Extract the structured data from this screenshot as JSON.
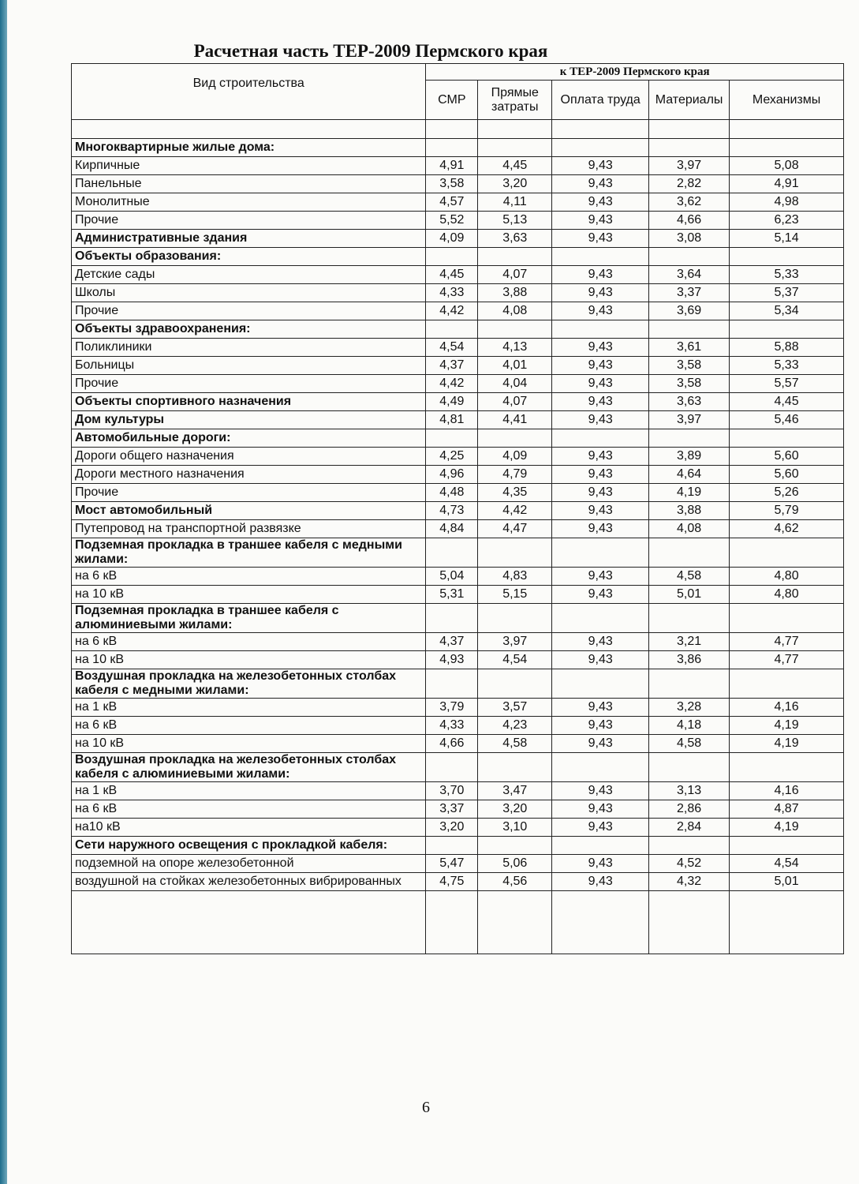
{
  "header": {
    "title": "Расчетная часть ТЕР-2009 Пермского края"
  },
  "table": {
    "first_column": "Вид строительства",
    "group_header": "к ТЕР-2009 Пермского края",
    "columns": [
      "СМР",
      "Прямые затраты",
      "Оплата труда",
      "Материалы",
      "Механизмы"
    ],
    "rows": [
      {
        "label": "Многоквартирные жилые дома:",
        "bold": true
      },
      {
        "label": "Кирпичные",
        "values": [
          "4,91",
          "4,45",
          "9,43",
          "3,97",
          "5,08"
        ]
      },
      {
        "label": "Панельные",
        "values": [
          "3,58",
          "3,20",
          "9,43",
          "2,82",
          "4,91"
        ]
      },
      {
        "label": "Монолитные",
        "values": [
          "4,57",
          "4,11",
          "9,43",
          "3,62",
          "4,98"
        ]
      },
      {
        "label": "Прочие",
        "values": [
          "5,52",
          "5,13",
          "9,43",
          "4,66",
          "6,23"
        ]
      },
      {
        "label": "Административные здания",
        "bold": true,
        "values": [
          "4,09",
          "3,63",
          "9,43",
          "3,08",
          "5,14"
        ]
      },
      {
        "label": "Объекты образования:",
        "bold": true
      },
      {
        "label": "Детские сады",
        "values": [
          "4,45",
          "4,07",
          "9,43",
          "3,64",
          "5,33"
        ]
      },
      {
        "label": "Школы",
        "values": [
          "4,33",
          "3,88",
          "9,43",
          "3,37",
          "5,37"
        ]
      },
      {
        "label": "Прочие",
        "values": [
          "4,42",
          "4,08",
          "9,43",
          "3,69",
          "5,34"
        ]
      },
      {
        "label": "Объекты здравоохранения:",
        "bold": true
      },
      {
        "label": "Поликлиники",
        "values": [
          "4,54",
          "4,13",
          "9,43",
          "3,61",
          "5,88"
        ]
      },
      {
        "label": "Больницы",
        "values": [
          "4,37",
          "4,01",
          "9,43",
          "3,58",
          "5,33"
        ]
      },
      {
        "label": "Прочие",
        "values": [
          "4,42",
          "4,04",
          "9,43",
          "3,58",
          "5,57"
        ]
      },
      {
        "label": "Объекты спортивного назначения",
        "bold": true,
        "values": [
          "4,49",
          "4,07",
          "9,43",
          "3,63",
          "4,45"
        ]
      },
      {
        "label": "Дом культуры",
        "bold": true,
        "values": [
          "4,81",
          "4,41",
          "9,43",
          "3,97",
          "5,46"
        ]
      },
      {
        "label": "Автомобильные дороги:",
        "bold": true
      },
      {
        "label": "Дороги общего назначения",
        "values": [
          "4,25",
          "4,09",
          "9,43",
          "3,89",
          "5,60"
        ]
      },
      {
        "label": "Дороги местного назначения",
        "values": [
          "4,96",
          "4,79",
          "9,43",
          "4,64",
          "5,60"
        ]
      },
      {
        "label": "Прочие",
        "values": [
          "4,48",
          "4,35",
          "9,43",
          "4,19",
          "5,26"
        ]
      },
      {
        "label": "Мост автомобильный",
        "bold": true,
        "values": [
          "4,73",
          "4,42",
          "9,43",
          "3,88",
          "5,79"
        ]
      },
      {
        "label": "Путепровод на транспортной развязке",
        "values": [
          "4,84",
          "4,47",
          "9,43",
          "4,08",
          "4,62"
        ]
      },
      {
        "label": "Подземная прокладка в траншее кабеля с медными жилами:",
        "bold": true
      },
      {
        "label": "на 6 кВ",
        "values": [
          "5,04",
          "4,83",
          "9,43",
          "4,58",
          "4,80"
        ]
      },
      {
        "label": "на 10 кВ",
        "values": [
          "5,31",
          "5,15",
          "9,43",
          "5,01",
          "4,80"
        ]
      },
      {
        "label": "Подземная прокладка в траншее кабеля с алюминиевыми жилами:",
        "bold": true
      },
      {
        "label": "на 6 кВ",
        "values": [
          "4,37",
          "3,97",
          "9,43",
          "3,21",
          "4,77"
        ]
      },
      {
        "label": "на 10 кВ",
        "values": [
          "4,93",
          "4,54",
          "9,43",
          "3,86",
          "4,77"
        ]
      },
      {
        "label": "Воздушная прокладка на железобетонных столбах кабеля с медными жилами:",
        "bold": true
      },
      {
        "label": "на 1 кВ",
        "values": [
          "3,79",
          "3,57",
          "9,43",
          "3,28",
          "4,16"
        ]
      },
      {
        "label": "на 6 кВ",
        "values": [
          "4,33",
          "4,23",
          "9,43",
          "4,18",
          "4,19"
        ]
      },
      {
        "label": "на 10 кВ",
        "values": [
          "4,66",
          "4,58",
          "9,43",
          "4,58",
          "4,19"
        ]
      },
      {
        "label": "Воздушная прокладка на железобетонных столбах кабеля с алюминиевыми жилами:",
        "bold": true
      },
      {
        "label": "на 1 кВ",
        "values": [
          "3,70",
          "3,47",
          "9,43",
          "3,13",
          "4,16"
        ]
      },
      {
        "label": "на 6 кВ",
        "values": [
          "3,37",
          "3,20",
          "9,43",
          "2,86",
          "4,87"
        ]
      },
      {
        "label": "на10 кВ",
        "values": [
          "3,20",
          "3,10",
          "9,43",
          "2,84",
          "4,19"
        ]
      },
      {
        "label": "Сети наружного освещения с прокладкой кабеля:",
        "bold": true
      },
      {
        "label": "подземной на опоре железобетонной",
        "values": [
          "5,47",
          "5,06",
          "9,43",
          "4,52",
          "4,54"
        ]
      },
      {
        "label": "воздушной на стойках железобетонных вибрированных",
        "values": [
          "4,75",
          "4,56",
          "9,43",
          "4,32",
          "5,01"
        ]
      }
    ]
  },
  "footer": {
    "page_number": "6"
  }
}
